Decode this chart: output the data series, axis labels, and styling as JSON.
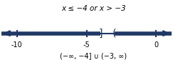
{
  "title": "x ≤ −4 or x > −3",
  "interval_notation": "(−∞, −4] ∪ (−3, ∞)",
  "xmin": -10,
  "xmax": 0,
  "ticks": [
    -10,
    -5,
    0
  ],
  "closed_point": -4,
  "open_point": -3,
  "line_color": "#1f3864",
  "background_color": "#ffffff"
}
